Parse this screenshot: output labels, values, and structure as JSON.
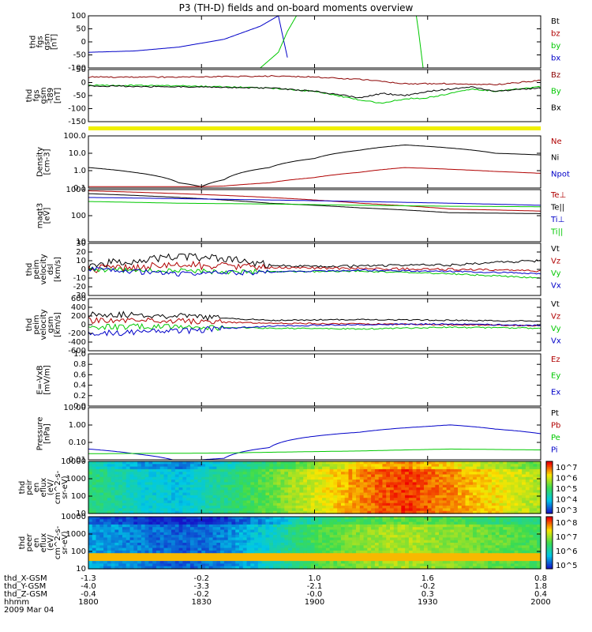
{
  "title": "P3 (TH-D) fields and on-board moments overview",
  "colors": {
    "black": "#000000",
    "red": "#b00000",
    "green": "#00c800",
    "blue": "#0000c8",
    "darkred": "#8b0000",
    "yellow": "#f0f000"
  },
  "chart_data": [
    {
      "type": "line",
      "ylabel": [
        "thd",
        "fgs",
        "gsm",
        "[nT]"
      ],
      "yticks": [
        "100",
        "50",
        "0",
        "-50",
        "-100"
      ],
      "ylim": [
        -100,
        100
      ],
      "legend": [
        {
          "label": "Bt",
          "color": "black"
        },
        {
          "label": "bz",
          "color": "red"
        },
        {
          "label": "by",
          "color": "green"
        },
        {
          "label": "bx",
          "color": "blue"
        }
      ],
      "series": [
        {
          "name": "bx",
          "color": "blue",
          "x": [
            0,
            0.1,
            0.2,
            0.3,
            0.38,
            0.42,
            0.44
          ],
          "y": [
            -40,
            -35,
            -20,
            10,
            60,
            100,
            -60
          ]
        },
        {
          "name": "by",
          "color": "green",
          "x": [
            0.38,
            0.42,
            0.44,
            0.46
          ],
          "y": [
            -100,
            -40,
            40,
            100
          ]
        },
        {
          "name": "by2",
          "color": "green",
          "x": [
            0.725,
            0.73,
            0.74
          ],
          "y": [
            100,
            40,
            -100
          ]
        }
      ]
    },
    {
      "type": "line",
      "ylabel": [
        "thd",
        "fgs",
        "gsm",
        "-t89",
        "[nT]"
      ],
      "yticks": [
        "50",
        "0",
        "-50",
        "-100",
        "-150"
      ],
      "ylim": [
        -180,
        60
      ],
      "legend": [
        {
          "label": "Bz",
          "color": "darkred"
        },
        {
          "label": "By",
          "color": "green"
        },
        {
          "label": "Bx",
          "color": "black"
        }
      ],
      "series": [
        {
          "name": "Bz",
          "color": "darkred",
          "x": [
            0,
            0.2,
            0.35,
            0.4,
            0.5,
            0.6,
            0.62,
            0.7,
            0.8,
            0.9,
            1
          ],
          "y": [
            25,
            25,
            28,
            30,
            25,
            15,
            10,
            -5,
            -5,
            -10,
            10
          ]
        },
        {
          "name": "By",
          "color": "green",
          "x": [
            0,
            0.2,
            0.4,
            0.5,
            0.6,
            0.65,
            0.7,
            0.75,
            0.8,
            0.85,
            0.9,
            1
          ],
          "y": [
            -12,
            -15,
            -25,
            -40,
            -80,
            -95,
            -75,
            -70,
            -50,
            -30,
            -40,
            -20
          ]
        },
        {
          "name": "Bx",
          "color": "black",
          "x": [
            0,
            0.2,
            0.4,
            0.5,
            0.6,
            0.65,
            0.7,
            0.75,
            0.8,
            0.85,
            0.9,
            1
          ],
          "y": [
            -15,
            -20,
            -25,
            -40,
            -70,
            -50,
            -60,
            -40,
            -30,
            -20,
            -40,
            -25
          ]
        }
      ]
    },
    {
      "type": "line",
      "ylabel": [
        "Density",
        "[cm-3]"
      ],
      "yticks": [
        "100.0",
        "10.0",
        "1.0",
        "0.1"
      ],
      "log": true,
      "ylim": [
        0.1,
        100
      ],
      "legend": [
        {
          "label": "Ne",
          "color": "red"
        },
        {
          "label": "Ni",
          "color": "black"
        },
        {
          "label": "Npot",
          "color": "blue"
        }
      ],
      "series": [
        {
          "name": "Ni",
          "color": "black",
          "x": [
            0,
            0.1,
            0.2,
            0.25,
            0.3,
            0.4,
            0.5,
            0.6,
            0.7,
            0.8,
            0.9,
            1
          ],
          "y": [
            1.5,
            0.8,
            0.2,
            0.12,
            0.3,
            1.5,
            5,
            15,
            30,
            20,
            10,
            8
          ]
        },
        {
          "name": "Ne",
          "color": "red",
          "x": [
            0,
            0.1,
            0.2,
            0.25,
            0.3,
            0.4,
            0.5,
            0.6,
            0.7,
            0.8,
            0.9,
            1
          ],
          "y": [
            0.12,
            0.12,
            0.12,
            0.12,
            0.13,
            0.2,
            0.4,
            0.8,
            1.5,
            1.2,
            0.9,
            0.7
          ]
        }
      ]
    },
    {
      "type": "line",
      "ylabel": [
        "magt3",
        "[eV]"
      ],
      "yticks": [
        "1000",
        "100",
        "10"
      ],
      "log": true,
      "ylim": [
        10,
        1000
      ],
      "legend": [
        {
          "label": "Te⊥",
          "color": "red"
        },
        {
          "label": "Te||",
          "color": "black"
        },
        {
          "label": "Ti⊥",
          "color": "blue"
        },
        {
          "label": "Ti||",
          "color": "green"
        }
      ],
      "series": [
        {
          "name": "Te⊥",
          "color": "red",
          "x": [
            0,
            0.2,
            0.4,
            0.6,
            0.8,
            1
          ],
          "y": [
            900,
            700,
            500,
            300,
            180,
            150
          ]
        },
        {
          "name": "Te||",
          "color": "black",
          "x": [
            0,
            0.2,
            0.4,
            0.6,
            0.8,
            1
          ],
          "y": [
            700,
            500,
            300,
            200,
            130,
            120
          ]
        },
        {
          "name": "Ti⊥",
          "color": "blue",
          "x": [
            0,
            0.2,
            0.4,
            0.6,
            0.8,
            1
          ],
          "y": [
            500,
            450,
            400,
            350,
            300,
            250
          ]
        },
        {
          "name": "Ti||",
          "color": "green",
          "x": [
            0,
            0.2,
            0.4,
            0.6,
            0.8,
            1
          ],
          "y": [
            350,
            300,
            280,
            250,
            230,
            220
          ]
        }
      ]
    },
    {
      "type": "line",
      "ylabel": [
        "thd",
        "peim",
        "velocity",
        "dsl",
        "[km/s]"
      ],
      "yticks": [
        "30",
        "20",
        "10",
        "0",
        "-10",
        "-20",
        "-30"
      ],
      "ylim": [
        -30,
        30
      ],
      "legend": [
        {
          "label": "Vt",
          "color": "black"
        },
        {
          "label": "Vz",
          "color": "red"
        },
        {
          "label": "Vy",
          "color": "green"
        },
        {
          "label": "Vx",
          "color": "blue"
        }
      ],
      "noise": [
        0.15,
        0.15,
        0.1,
        0.1
      ],
      "series": [
        {
          "name": "Vt",
          "color": "black",
          "x": [
            0,
            0.1,
            0.2,
            0.3,
            0.4,
            0.5,
            0.6,
            0.7,
            0.8,
            0.9,
            1
          ],
          "y": [
            5,
            10,
            15,
            12,
            5,
            3,
            4,
            5,
            5,
            8,
            10
          ]
        },
        {
          "name": "Vz",
          "color": "red",
          "x": [
            0,
            0.2,
            0.4,
            0.6,
            0.8,
            1
          ],
          "y": [
            0,
            5,
            2,
            1,
            0,
            -2
          ]
        },
        {
          "name": "Vy",
          "color": "green",
          "x": [
            0,
            0.2,
            0.4,
            0.6,
            0.8,
            1
          ],
          "y": [
            0,
            -2,
            -3,
            -2,
            -5,
            -10
          ]
        },
        {
          "name": "Vx",
          "color": "blue",
          "x": [
            0,
            0.2,
            0.4,
            0.6,
            0.8,
            1
          ],
          "y": [
            0,
            -5,
            -3,
            -1,
            -2,
            -5
          ]
        }
      ]
    },
    {
      "type": "line",
      "ylabel": [
        "thd",
        "peim",
        "velocity",
        "gsm",
        "[km/s]"
      ],
      "yticks": [
        "600",
        "400",
        "200",
        "0",
        "-200",
        "-400",
        "-600"
      ],
      "ylim": [
        -600,
        600
      ],
      "legend": [
        {
          "label": "Vt",
          "color": "black"
        },
        {
          "label": "Vz",
          "color": "red"
        },
        {
          "label": "Vy",
          "color": "green"
        },
        {
          "label": "Vx",
          "color": "blue"
        }
      ],
      "series": [
        {
          "name": "Vt",
          "color": "black",
          "x": [
            0,
            0.2,
            0.4,
            0.6,
            0.8,
            1
          ],
          "y": [
            250,
            200,
            100,
            120,
            100,
            80
          ]
        },
        {
          "name": "Vz",
          "color": "red",
          "x": [
            0,
            0.2,
            0.4,
            0.6,
            0.8,
            1
          ],
          "y": [
            100,
            80,
            30,
            20,
            0,
            -20
          ]
        },
        {
          "name": "Vy",
          "color": "green",
          "x": [
            0,
            0.2,
            0.4,
            0.6,
            0.8,
            1
          ],
          "y": [
            -50,
            -50,
            -80,
            -100,
            -60,
            -80
          ]
        },
        {
          "name": "Vx",
          "color": "blue",
          "x": [
            0,
            0.2,
            0.4,
            0.6,
            0.8,
            1
          ],
          "y": [
            -200,
            -150,
            -30,
            0,
            20,
            -20
          ]
        }
      ]
    },
    {
      "type": "line",
      "ylabel": [
        "E=-VxB",
        "[mV/m]"
      ],
      "yticks": [
        "1.0",
        "0.8",
        "0.6",
        "0.4",
        "0.2",
        "0.0"
      ],
      "ylim": [
        0,
        1
      ],
      "legend": [
        {
          "label": "Ez",
          "color": "red"
        },
        {
          "label": "Ey",
          "color": "green"
        },
        {
          "label": "Ex",
          "color": "blue"
        }
      ],
      "series": []
    },
    {
      "type": "line",
      "ylabel": [
        "Pressure",
        "[nPa]"
      ],
      "yticks": [
        "10.00",
        "1.00",
        "0.10",
        "0.01"
      ],
      "log": true,
      "ylim": [
        0.008,
        20
      ],
      "legend": [
        {
          "label": "Pt",
          "color": "black"
        },
        {
          "label": "Pb",
          "color": "red"
        },
        {
          "label": "Pe",
          "color": "green"
        },
        {
          "label": "Pi",
          "color": "blue"
        }
      ],
      "series": [
        {
          "name": "Pi",
          "color": "blue",
          "x": [
            0,
            0.1,
            0.2,
            0.3,
            0.4,
            0.6,
            0.75,
            0.8,
            0.9,
            1
          ],
          "y": [
            0.04,
            0.02,
            0.006,
            0.01,
            0.05,
            0.5,
            1.2,
            1.5,
            0.8,
            0.4
          ]
        },
        {
          "name": "Pe",
          "color": "green",
          "x": [
            0,
            0.3,
            0.6,
            0.8,
            1
          ],
          "y": [
            0.02,
            0.022,
            0.03,
            0.04,
            0.035
          ]
        }
      ]
    },
    {
      "type": "heatmap",
      "ylabel": [
        "thd",
        "peir",
        "en",
        "eflux",
        "(eV/",
        "cm^2-s-",
        "sr-eV)"
      ],
      "yticks": [
        "10000",
        "1000",
        "100",
        "10"
      ],
      "zticks": [
        "10^7",
        "10^6",
        "10^5",
        "10^4",
        "10^3"
      ],
      "x_profile": [
        0.45,
        0.3,
        0.25,
        0.4,
        0.55,
        0.7,
        0.85,
        0.95,
        0.85,
        0.75,
        0.65
      ]
    },
    {
      "type": "heatmap",
      "ylabel": [
        "thd",
        "peer",
        "en",
        "eflux",
        "(eV/",
        "cm^2-s-",
        "sr-eV)"
      ],
      "yticks": [
        "10000",
        "1000",
        "100",
        "10"
      ],
      "zticks": [
        "10^8",
        "10^7",
        "10^6",
        "10^5"
      ],
      "x_profile": [
        0.2,
        0.15,
        0.1,
        0.15,
        0.3,
        0.5,
        0.6,
        0.65,
        0.6,
        0.55,
        0.5
      ]
    }
  ],
  "xaxis": {
    "rows": [
      {
        "label": "thd_X-GSM",
        "values": [
          "-1.3",
          "-0.2",
          "1.0",
          "1.6",
          "0.8"
        ]
      },
      {
        "label": "thd_Y-GSM",
        "values": [
          "-4.0",
          "-3.3",
          "-2.1",
          "-0.2",
          "1.8"
        ]
      },
      {
        "label": "thd_Z-GSM",
        "values": [
          "-0.4",
          "-0.2",
          "-0.0",
          "0.3",
          "0.4"
        ]
      },
      {
        "label": "hhmm",
        "values": [
          "1800",
          "1830",
          "1900",
          "1930",
          "2000"
        ]
      }
    ],
    "date": "2009 Mar 04"
  }
}
